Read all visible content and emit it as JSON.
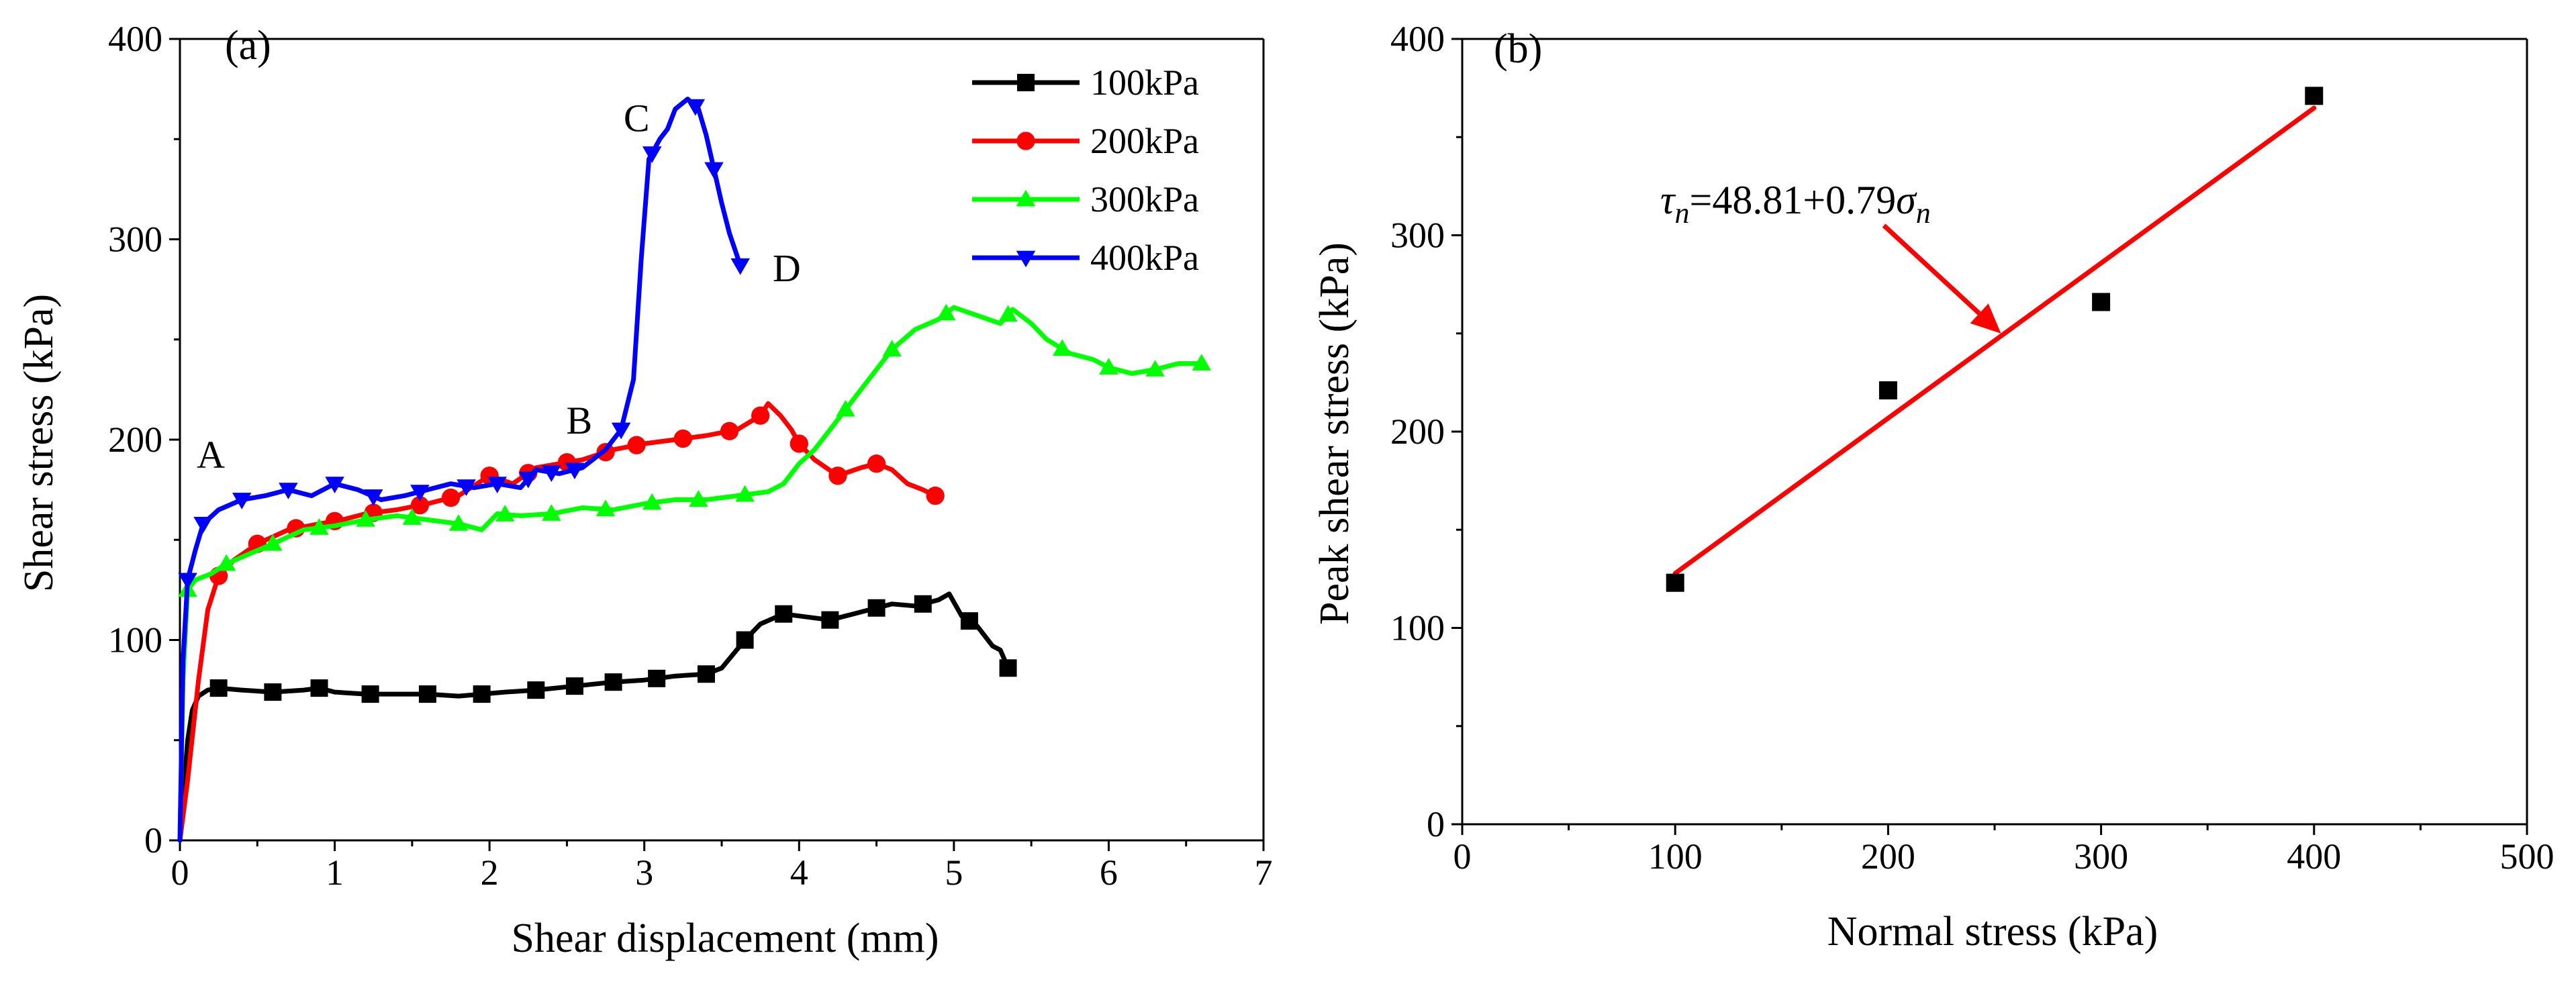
{
  "chart_data": [
    {
      "type": "line",
      "panel_label": "(a)",
      "xlabel": "Shear displacement (mm)",
      "ylabel": "Shear stress (kPa)",
      "xlim": [
        0,
        7
      ],
      "ylim": [
        0,
        400
      ],
      "xticks": [
        0,
        1,
        2,
        3,
        4,
        5,
        6,
        7
      ],
      "yticks": [
        0,
        100,
        200,
        300,
        400
      ],
      "grid": false,
      "legend_position": "top-right",
      "series": [
        {
          "name": "100kPa",
          "color": "#000000",
          "marker": "square",
          "points": [
            [
              0,
              0
            ],
            [
              0.02,
              20
            ],
            [
              0.05,
              50
            ],
            [
              0.08,
              65
            ],
            [
              0.12,
              72
            ],
            [
              0.18,
              75
            ],
            [
              0.25,
              76
            ],
            [
              0.4,
              75
            ],
            [
              0.6,
              74
            ],
            [
              0.8,
              75
            ],
            [
              0.9,
              76
            ],
            [
              1.0,
              74
            ],
            [
              1.2,
              73
            ],
            [
              1.4,
              73
            ],
            [
              1.6,
              73
            ],
            [
              1.8,
              72
            ],
            [
              1.95,
              73
            ],
            [
              2.1,
              74
            ],
            [
              2.3,
              75
            ],
            [
              2.55,
              77
            ],
            [
              2.8,
              79
            ],
            [
              3.0,
              80
            ],
            [
              3.2,
              82
            ],
            [
              3.4,
              83
            ],
            [
              3.5,
              86
            ],
            [
              3.65,
              100
            ],
            [
              3.75,
              108
            ],
            [
              3.9,
              113
            ],
            [
              4.0,
              112
            ],
            [
              4.1,
              111
            ],
            [
              4.2,
              110
            ],
            [
              4.3,
              112
            ],
            [
              4.45,
              115
            ],
            [
              4.6,
              118
            ],
            [
              4.75,
              117
            ],
            [
              4.9,
              120
            ],
            [
              4.97,
              123
            ],
            [
              5.05,
              112
            ],
            [
              5.15,
              107
            ],
            [
              5.25,
              97
            ],
            [
              5.3,
              95
            ],
            [
              5.35,
              86
            ]
          ],
          "marker_x": [
            0.25,
            0.6,
            0.9,
            1.23,
            1.6,
            1.95,
            2.3,
            2.55,
            2.8,
            3.08,
            3.4,
            3.65,
            3.9,
            4.2,
            4.5,
            4.8,
            5.1,
            5.35
          ]
        },
        {
          "name": "200kPa",
          "color": "#ff0000",
          "marker": "circle",
          "points": [
            [
              0,
              0
            ],
            [
              0.05,
              30
            ],
            [
              0.12,
              80
            ],
            [
              0.18,
              115
            ],
            [
              0.25,
              132
            ],
            [
              0.35,
              140
            ],
            [
              0.5,
              148
            ],
            [
              0.7,
              155
            ],
            [
              0.9,
              158
            ],
            [
              1.05,
              160
            ],
            [
              1.2,
              163
            ],
            [
              1.4,
              165
            ],
            [
              1.6,
              168
            ],
            [
              1.8,
              172
            ],
            [
              2.0,
              182
            ],
            [
              2.15,
              178
            ],
            [
              2.3,
              186
            ],
            [
              2.45,
              188
            ],
            [
              2.6,
              190
            ],
            [
              2.8,
              195
            ],
            [
              3.0,
              198
            ],
            [
              3.2,
              200
            ],
            [
              3.4,
              202
            ],
            [
              3.6,
              205
            ],
            [
              3.75,
              212
            ],
            [
              3.8,
              218
            ],
            [
              3.88,
              212
            ],
            [
              3.95,
              205
            ],
            [
              4.0,
              198
            ],
            [
              4.1,
              190
            ],
            [
              4.25,
              182
            ],
            [
              4.4,
              186
            ],
            [
              4.5,
              188
            ],
            [
              4.6,
              185
            ],
            [
              4.7,
              178
            ],
            [
              4.8,
              175
            ],
            [
              4.88,
              172
            ]
          ],
          "marker_x": [
            0.25,
            0.5,
            0.75,
            1.0,
            1.25,
            1.55,
            1.75,
            2.0,
            2.25,
            2.5,
            2.75,
            2.95,
            3.25,
            3.55,
            3.75,
            4.0,
            4.25,
            4.5,
            4.88
          ]
        },
        {
          "name": "300kPa",
          "color": "#00ff00",
          "marker": "triangle-up",
          "points": [
            [
              0,
              0
            ],
            [
              0.02,
              80
            ],
            [
              0.05,
              125
            ],
            [
              0.1,
              130
            ],
            [
              0.2,
              133
            ],
            [
              0.3,
              138
            ],
            [
              0.45,
              143
            ],
            [
              0.6,
              148
            ],
            [
              0.8,
              155
            ],
            [
              1.0,
              157
            ],
            [
              1.2,
              160
            ],
            [
              1.4,
              162
            ],
            [
              1.6,
              160
            ],
            [
              1.8,
              158
            ],
            [
              1.95,
              155
            ],
            [
              2.05,
              163
            ],
            [
              2.2,
              162
            ],
            [
              2.4,
              163
            ],
            [
              2.6,
              166
            ],
            [
              2.8,
              165
            ],
            [
              3.0,
              168
            ],
            [
              3.2,
              170
            ],
            [
              3.4,
              170
            ],
            [
              3.6,
              172
            ],
            [
              3.8,
              174
            ],
            [
              3.9,
              178
            ],
            [
              4.0,
              188
            ],
            [
              4.1,
              195
            ],
            [
              4.2,
              205
            ],
            [
              4.3,
              215
            ],
            [
              4.4,
              225
            ],
            [
              4.5,
              235
            ],
            [
              4.6,
              245
            ],
            [
              4.75,
              255
            ],
            [
              4.9,
              260
            ],
            [
              5.0,
              266
            ],
            [
              5.15,
              262
            ],
            [
              5.3,
              258
            ],
            [
              5.38,
              265
            ],
            [
              5.5,
              258
            ],
            [
              5.6,
              250
            ],
            [
              5.75,
              243
            ],
            [
              5.9,
              240
            ],
            [
              6.0,
              236
            ],
            [
              6.15,
              233
            ],
            [
              6.3,
              235
            ],
            [
              6.45,
              238
            ],
            [
              6.6,
              238
            ]
          ],
          "marker_x": [
            0.05,
            0.3,
            0.6,
            0.9,
            1.2,
            1.5,
            1.8,
            2.1,
            2.4,
            2.75,
            3.05,
            3.35,
            3.65,
            4.3,
            4.6,
            4.95,
            5.35,
            5.7,
            6.0,
            6.3,
            6.6
          ]
        },
        {
          "name": "400kPa",
          "color": "#0000ff",
          "marker": "triangle-down",
          "points": [
            [
              0,
              0
            ],
            [
              0.02,
              90
            ],
            [
              0.05,
              130
            ],
            [
              0.1,
              145
            ],
            [
              0.15,
              158
            ],
            [
              0.25,
              165
            ],
            [
              0.4,
              170
            ],
            [
              0.55,
              172
            ],
            [
              0.7,
              175
            ],
            [
              0.85,
              172
            ],
            [
              1.0,
              178
            ],
            [
              1.15,
              175
            ],
            [
              1.3,
              170
            ],
            [
              1.45,
              172
            ],
            [
              1.6,
              175
            ],
            [
              1.75,
              178
            ],
            [
              1.9,
              176
            ],
            [
              2.05,
              178
            ],
            [
              2.2,
              176
            ],
            [
              2.3,
              185
            ],
            [
              2.45,
              183
            ],
            [
              2.6,
              186
            ],
            [
              2.75,
              195
            ],
            [
              2.85,
              205
            ],
            [
              2.93,
              230
            ],
            [
              2.98,
              290
            ],
            [
              3.03,
              340
            ],
            [
              3.1,
              350
            ],
            [
              3.15,
              355
            ],
            [
              3.2,
              365
            ],
            [
              3.28,
              370
            ],
            [
              3.35,
              365
            ],
            [
              3.4,
              352
            ],
            [
              3.45,
              335
            ],
            [
              3.5,
              318
            ],
            [
              3.55,
              303
            ],
            [
              3.62,
              287
            ]
          ],
          "marker_x": [
            0.05,
            0.15,
            0.4,
            0.7,
            1.0,
            1.25,
            1.55,
            1.85,
            2.05,
            2.25,
            2.4,
            2.55,
            2.85,
            3.05,
            3.33,
            3.45,
            3.62
          ]
        }
      ],
      "annotations": [
        {
          "text": "A",
          "x": 0.2,
          "y": 186
        },
        {
          "text": "B",
          "x": 2.58,
          "y": 203
        },
        {
          "text": "C",
          "x": 2.95,
          "y": 354
        },
        {
          "text": "D",
          "x": 3.92,
          "y": 279
        }
      ]
    },
    {
      "type": "scatter",
      "panel_label": "(b)",
      "xlabel": "Normal stress (kPa)",
      "ylabel": "Peak shear stress (kPa)",
      "xlim": [
        0,
        500
      ],
      "ylim": [
        0,
        400
      ],
      "xticks": [
        0,
        100,
        200,
        300,
        400,
        500
      ],
      "yticks": [
        0,
        100,
        200,
        300,
        400
      ],
      "grid": false,
      "points": {
        "x": [
          100,
          200,
          300,
          400
        ],
        "y": [
          123,
          221,
          266,
          371
        ]
      },
      "point_color": "#000000",
      "fit_line": {
        "intercept": 48.81,
        "slope": 0.79,
        "x_range": [
          100,
          400
        ],
        "color": "#ff0000"
      },
      "equation": {
        "tau": "τ",
        "tau_sub": "n",
        "middle": "=48.81+0.79",
        "sigma": "σ",
        "sigma_sub": "n"
      },
      "arrow": {
        "from": [
          198,
          305
        ],
        "to": [
          253,
          250
        ],
        "color": "#ff0000"
      }
    }
  ]
}
